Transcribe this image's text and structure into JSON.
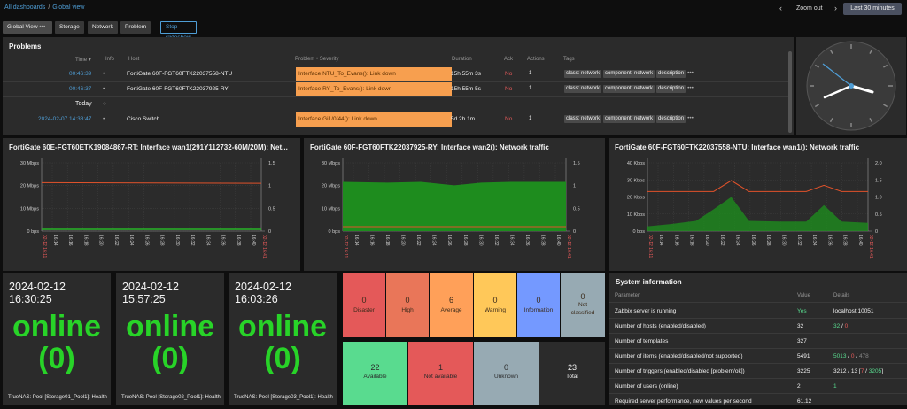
{
  "breadcrumb": {
    "all": "All dashboards",
    "sep": "/",
    "current": "Global view"
  },
  "topbar": {
    "zoom_out": "Zoom out",
    "time_range": "Last 30 minutes",
    "prev": "‹",
    "next": "›",
    "clock": "◷"
  },
  "tabs": [
    "Global View",
    "Storage",
    "Network",
    "Problem"
  ],
  "tab_menu": "•••",
  "slideshow": "Stop slideshow",
  "problems": {
    "title": "Problems",
    "headers": {
      "time": "Time ▾",
      "info": "Info",
      "host": "Host",
      "problem": "Problem • Severity",
      "duration": "Duration",
      "ack": "Ack",
      "actions": "Actions",
      "tags": "Tags"
    },
    "rows": [
      {
        "time": "00:46:39",
        "host": "FortiGate 60F-FGT60FTK22037558-NTU",
        "problem": "Interface NTU_To_Evans(): Link down",
        "duration": "15h 55m 3s",
        "ack": "No",
        "actions": "1",
        "tags": [
          "class: network",
          "component: network",
          "description"
        ]
      },
      {
        "time": "00:46:37",
        "host": "FortiGate 60F-FGT60FTK22037925-RY",
        "problem": "Interface RY_To_Evans(): Link down",
        "duration": "15h 55m 5s",
        "ack": "No",
        "actions": "1",
        "tags": [
          "class: network",
          "component: network",
          "description"
        ]
      },
      {
        "time": "Today",
        "host": "",
        "problem": "",
        "duration": "",
        "ack": "",
        "actions": "",
        "tags": []
      },
      {
        "time": "2024-02-07 14:38:47",
        "host": "Cisco Switch",
        "problem": "Interface Gi1/0/44(): Link down",
        "duration": "5d 2h 1m",
        "ack": "No",
        "actions": "1",
        "tags": [
          "class: network",
          "component: network",
          "description"
        ]
      }
    ]
  },
  "graphs": [
    {
      "title": "FortiGate 60E-FGT60ETK19084867-RT: Interface wan1(291Y112732-60M/20M): Net...",
      "yl": [
        "30 Mbps",
        "20 Mbps",
        "10 Mbps",
        "0 bps"
      ],
      "yr": [
        "1.5",
        "1",
        "0.5",
        "0"
      ],
      "xt": [
        "16:14",
        "16:16",
        "16:18",
        "16:20",
        "16:22",
        "16:24",
        "16:26",
        "16:28",
        "16:30",
        "16:32",
        "16:34",
        "16:36",
        "16:38",
        "16:40"
      ],
      "xs": "02-12 16:11",
      "xe": "02-12 16:41"
    },
    {
      "title": "FortiGate 60F-FGT60FTK22037925-RY: Interface wan2(): Network traffic",
      "yl": [
        "30 Mbps",
        "20 Mbps",
        "10 Mbps",
        "0 bps"
      ],
      "yr": [
        "1.5",
        "1",
        "0.5",
        "0"
      ],
      "xt": [
        "16:14",
        "16:16",
        "16:18",
        "16:20",
        "16:22",
        "16:24",
        "16:26",
        "16:28",
        "16:30",
        "16:32",
        "16:34",
        "16:36",
        "16:38",
        "16:40"
      ],
      "xs": "02-12 16:11",
      "xe": "02-12 16:41"
    },
    {
      "title": "FortiGate 60F-FGT60FTK22037558-NTU: Interface wan1(): Network traffic",
      "yl": [
        "40 Kbps",
        "30 Kbps",
        "20 Kbps",
        "10 Kbps",
        "0 bps"
      ],
      "yr": [
        "2.0",
        "1.5",
        "1.0",
        "0.5",
        "0"
      ],
      "xt": [
        "16:14",
        "16:16",
        "16:18",
        "16:20",
        "16:22",
        "16:24",
        "16:26",
        "16:28",
        "16:30",
        "16:32",
        "16:34",
        "16:36",
        "16:38",
        "16:40"
      ],
      "xs": "02-12 16:11",
      "xe": "02-12 16:41"
    }
  ],
  "pools": [
    {
      "date": "2024-02-12 16:30:25",
      "status": "online",
      "value": "(0)",
      "label": "TrueNAS: Pool [Storage01_Pool1]: Health"
    },
    {
      "date": "2024-02-12 15:57:25",
      "status": "online",
      "value": "(0)",
      "label": "TrueNAS: Pool [Storage02_Pool1]: Health"
    },
    {
      "date": "2024-02-12 16:03:26",
      "status": "online",
      "value": "(0)",
      "label": "TrueNAS: Pool [Storage03_Pool1]: Health"
    }
  ],
  "severity": [
    {
      "count": "0",
      "label": "Disaster",
      "color": "#e45959"
    },
    {
      "count": "0",
      "label": "High",
      "color": "#e97659"
    },
    {
      "count": "6",
      "label": "Average",
      "color": "#ffa059"
    },
    {
      "count": "0",
      "label": "Warning",
      "color": "#ffc859"
    },
    {
      "count": "0",
      "label": "Information",
      "color": "#7499ff"
    },
    {
      "count": "0",
      "label": "Not classified",
      "color": "#97aab3"
    }
  ],
  "hosts": [
    {
      "count": "22",
      "label": "Available",
      "color": "#59db8f"
    },
    {
      "count": "1",
      "label": "Not available",
      "color": "#e45959"
    },
    {
      "count": "0",
      "label": "Unknown",
      "color": "#97aab3"
    },
    {
      "count": "23",
      "label": "Total",
      "color": "#2b2b2b"
    }
  ],
  "sysinfo": {
    "title": "System information",
    "headers": {
      "p": "Parameter",
      "v": "Value",
      "d": "Details"
    },
    "rows": [
      {
        "p": "Zabbix server is running",
        "v": "Yes",
        "d": "localhost:10051"
      },
      {
        "p": "Number of hosts (enabled/disabled)",
        "v": "32",
        "d1": "32",
        "d2": "0"
      },
      {
        "p": "Number of templates",
        "v": "327"
      },
      {
        "p": "Number of items (enabled/disabled/not supported)",
        "v": "5491",
        "d1": "5013",
        "d2": "0",
        "d3": "478"
      },
      {
        "p": "Number of triggers (enabled/disabled [problem/ok])",
        "v": "3225",
        "d1": "3212 / 13 [",
        "d2": "7",
        "d3": "3205",
        "d4": "]"
      },
      {
        "p": "Number of users (online)",
        "v": "2",
        "d1": "1"
      },
      {
        "p": "Required server performance, new values per second",
        "v": "61.12"
      }
    ]
  }
}
